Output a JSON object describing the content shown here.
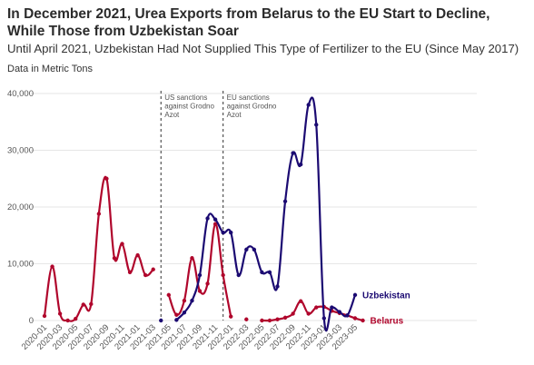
{
  "chart_data": {
    "type": "line",
    "title": "In December 2021, Urea Exports from Belarus to the EU Start to Decline, While Those from Uzbekistan Soar",
    "subtitle": "Until April 2021, Uzbekistan Had Not Supplied This Type of Fertilizer to the EU (Since May 2017)",
    "ylabel": "Data in Metric Tons",
    "ylim": [
      0,
      40000
    ],
    "yticks": [
      0,
      10000,
      20000,
      30000,
      40000
    ],
    "ytick_labels": [
      "0",
      "10,000",
      "20,000",
      "30,000",
      "40,000"
    ],
    "xtick_labels": [
      "2020-01",
      "2020-03",
      "2020-05",
      "2020-07",
      "2020-09",
      "2020-11",
      "2021-01",
      "2021-03",
      "2021-05",
      "2021-07",
      "2021-09",
      "2021-11",
      "2022-01",
      "2022-03",
      "2022-05",
      "2022-07",
      "2022-09",
      "2022-11",
      "2023-01",
      "2023-03",
      "2023-05"
    ],
    "annotations": [
      {
        "label": [
          "US sanctions",
          "against Grodno",
          "Azot"
        ],
        "x": "2021-04"
      },
      {
        "label": [
          "EU sanctions",
          "against Grodno",
          "Azot"
        ],
        "x": "2021-12"
      }
    ],
    "series": [
      {
        "name": "Belarus",
        "color": "#b0062c",
        "segments": [
          [
            [
              "2020-01",
              800
            ],
            [
              "2020-02",
              9500
            ],
            [
              "2020-03",
              1200
            ],
            [
              "2020-04",
              0
            ],
            [
              "2020-05",
              300
            ],
            [
              "2020-06",
              2800
            ],
            [
              "2020-07",
              2900
            ],
            [
              "2020-08",
              18800
            ],
            [
              "2020-09",
              25000
            ],
            [
              "2020-10",
              11000
            ],
            [
              "2020-11",
              13500
            ],
            [
              "2020-12",
              8500
            ],
            [
              "2021-01",
              11500
            ],
            [
              "2021-02",
              8000
            ],
            [
              "2021-03",
              9000
            ]
          ],
          [
            [
              "2021-05",
              4500
            ],
            [
              "2021-06",
              1000
            ],
            [
              "2021-07",
              3500
            ],
            [
              "2021-08",
              11000
            ],
            [
              "2021-09",
              5200
            ],
            [
              "2021-10",
              6500
            ],
            [
              "2021-11",
              17000
            ],
            [
              "2021-12",
              8000
            ],
            [
              "2022-01",
              700
            ]
          ],
          [
            [
              "2022-03",
              200
            ]
          ],
          [
            [
              "2022-05",
              0
            ],
            [
              "2022-06",
              0
            ],
            [
              "2022-07",
              200
            ],
            [
              "2022-08",
              500
            ],
            [
              "2022-09",
              1200
            ],
            [
              "2022-10",
              3400
            ],
            [
              "2022-11",
              1200
            ],
            [
              "2022-12",
              2300
            ],
            [
              "2023-01",
              2400
            ],
            [
              "2023-02",
              1700
            ],
            [
              "2023-03",
              1300
            ],
            [
              "2023-04",
              900
            ],
            [
              "2023-05",
              400
            ],
            [
              "2023-06",
              0
            ]
          ]
        ]
      },
      {
        "name": "Uzbekistan",
        "color": "#1b0a72",
        "segments": [
          [
            [
              "2021-04",
              0
            ]
          ],
          [
            [
              "2021-06",
              100
            ],
            [
              "2021-07",
              1400
            ],
            [
              "2021-08",
              3500
            ],
            [
              "2021-09",
              8000
            ],
            [
              "2021-10",
              18000
            ],
            [
              "2021-11",
              17800
            ],
            [
              "2021-12",
              15500
            ],
            [
              "2022-01",
              15500
            ],
            [
              "2022-02",
              8000
            ],
            [
              "2022-03",
              12500
            ],
            [
              "2022-04",
              12500
            ],
            [
              "2022-05",
              8500
            ],
            [
              "2022-06",
              8500
            ],
            [
              "2022-07",
              6000
            ],
            [
              "2022-08",
              21000
            ],
            [
              "2022-09",
              29500
            ],
            [
              "2022-10",
              27500
            ],
            [
              "2022-11",
              38000
            ],
            [
              "2022-12",
              34500
            ],
            [
              "2023-01",
              400
            ],
            [
              "2023-02",
              2300
            ],
            [
              "2023-03",
              1500
            ],
            [
              "2023-04",
              900
            ],
            [
              "2023-05",
              4500
            ]
          ]
        ]
      }
    ]
  }
}
